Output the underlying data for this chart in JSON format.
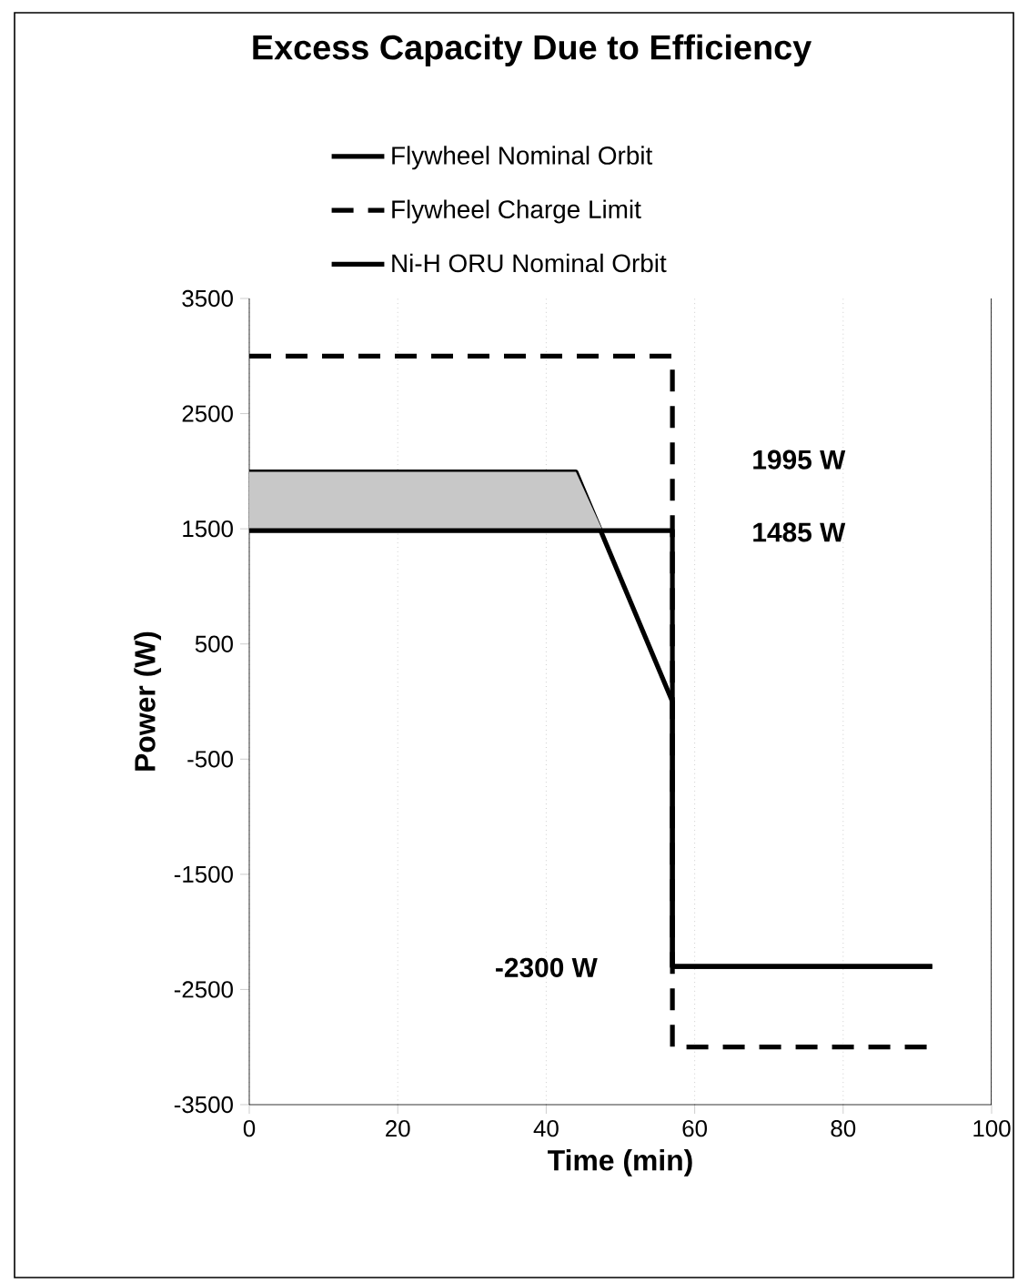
{
  "chart_data": {
    "type": "line",
    "title": "Excess Capacity Due to Efficiency",
    "xlabel": "Time (min)",
    "ylabel": "Power (W)",
    "xlim": [
      0,
      100
    ],
    "xticks": [
      0,
      20,
      40,
      60,
      80,
      100
    ],
    "ylim": [
      -3500,
      3500
    ],
    "yticks": [
      -3500,
      -2500,
      -1500,
      -500,
      500,
      1500,
      2500,
      3500
    ],
    "grid": "x",
    "legend": "top",
    "marker": "none",
    "series": [
      {
        "name": "Flywheel Nominal Orbit",
        "color": "#000000",
        "line_style": "solid",
        "x": [
          0,
          44,
          57,
          57,
          92
        ],
        "values": [
          1995,
          1995,
          0,
          -2300,
          -2300
        ]
      },
      {
        "name": "Flywheel Charge Limit",
        "color": "#000000",
        "line_style": "dashed",
        "x": [
          0,
          57,
          57,
          92
        ],
        "values": [
          3000,
          3000,
          -3000,
          -3000
        ]
      },
      {
        "name": "Ni-H ORU Nominal Orbit",
        "color": "#000000",
        "line_style": "solid",
        "x": [
          0,
          44,
          47.6,
          57,
          57,
          92
        ],
        "values": [
          1485,
          1485,
          1485,
          1485,
          -2300,
          -2300
        ],
        "lower": [
          1485,
          1485,
          1485,
          null,
          null,
          null
        ],
        "upper": [
          1995,
          1995,
          1485,
          null,
          null,
          null
        ]
      }
    ],
    "annotations": [
      "1995 W",
      "1485 W",
      "-2300 W"
    ]
  }
}
